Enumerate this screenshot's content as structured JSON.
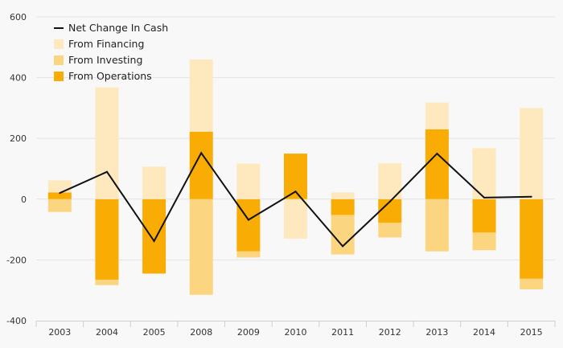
{
  "colors": {
    "background": "#f8f8f8",
    "plot_background": "#f8f8f8",
    "grid": "#e3e3e3",
    "axis": "#cfcfcf",
    "financing": "#fde9bd",
    "investing": "#fcd580",
    "operations": "#f9ac03",
    "net_line": "#111111"
  },
  "chart_data": {
    "type": "bar",
    "stacked": true,
    "title": "",
    "xlabel": "",
    "ylabel": "",
    "ylim": [
      -400,
      600
    ],
    "yticks": [
      -400,
      -200,
      0,
      200,
      400,
      600
    ],
    "ytick_labels": [
      "-400",
      "-200",
      "0",
      "200",
      "400",
      "600"
    ],
    "categories": [
      "2003",
      "2004",
      "2005",
      "2008",
      "2009",
      "2010",
      "2011",
      "2012",
      "2013",
      "2014",
      "2015"
    ],
    "series": [
      {
        "name": "From Operations",
        "type": "bar",
        "color_key": "operations",
        "values": [
          22,
          -265,
          -245,
          222,
          -172,
          150,
          -52,
          -78,
          230,
          -110,
          -262
        ]
      },
      {
        "name": "From Investing",
        "type": "bar",
        "color_key": "investing",
        "values": [
          -42,
          -18,
          0,
          -315,
          -20,
          0,
          -130,
          -48,
          -172,
          -58,
          -35
        ]
      },
      {
        "name": "From Financing",
        "type": "bar",
        "color_key": "financing",
        "values": [
          40,
          368,
          107,
          238,
          117,
          -130,
          22,
          118,
          88,
          168,
          300
        ]
      },
      {
        "name": "Net Change In Cash",
        "type": "line",
        "color_key": "net_line",
        "values": [
          20,
          90,
          -138,
          152,
          -68,
          25,
          -155,
          -8,
          150,
          5,
          8
        ]
      }
    ],
    "legend": {
      "position": "top-left",
      "order": [
        "Net Change In Cash",
        "From Financing",
        "From Investing",
        "From Operations"
      ]
    }
  }
}
